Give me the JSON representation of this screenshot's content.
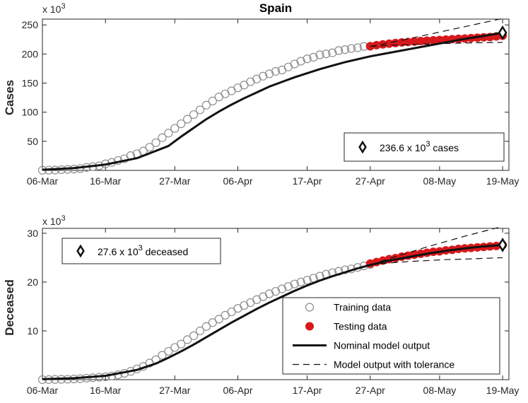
{
  "chart_data": [
    {
      "type": "line",
      "title": "Spain",
      "ylabel": "Cases",
      "y_exponent": "x 10^3",
      "ylim": [
        0,
        260
      ],
      "yticks": [
        50,
        100,
        150,
        200,
        250
      ],
      "xlim": [
        0,
        74
      ],
      "xtick_positions": [
        0,
        10,
        21,
        31,
        42,
        52,
        63,
        73
      ],
      "xtick_labels": [
        "06-Mar",
        "16-Mar",
        "27-Mar",
        "06-Apr",
        "17-Apr",
        "27-Apr",
        "08-May",
        "19-May"
      ],
      "training_data": {
        "name": "Training data",
        "x": [
          0,
          1,
          2,
          3,
          4,
          5,
          6,
          7,
          8,
          9,
          10,
          11,
          12,
          13,
          14,
          15,
          16,
          17,
          18,
          19,
          20,
          21,
          22,
          23,
          24,
          25,
          26,
          27,
          28,
          29,
          30,
          31,
          32,
          33,
          34,
          35,
          36,
          37,
          38,
          39,
          40,
          41,
          42,
          43,
          44,
          45,
          46,
          47,
          48,
          49,
          50,
          51,
          52
        ],
        "y": [
          0.3,
          0.4,
          0.6,
          1.2,
          1.7,
          2.3,
          3.1,
          5.2,
          6.4,
          7.8,
          11.2,
          13.7,
          17.1,
          20.0,
          25.4,
          28.6,
          33.1,
          39.7,
          47.6,
          56.2,
          64.1,
          72.2,
          80.1,
          87.9,
          95.9,
          104.1,
          112.1,
          119.2,
          126.2,
          131.6,
          136.7,
          141.9,
          146.7,
          152.4,
          157.0,
          161.9,
          166.0,
          170.1,
          172.5,
          177.6,
          182.8,
          187.6,
          191.7,
          194.4,
          198.6,
          200.2,
          202.0,
          205.9,
          207.6,
          209.5,
          210.8,
          212.9,
          213.4
        ]
      },
      "testing_data": {
        "name": "Testing data",
        "x": [
          52,
          53,
          54,
          55,
          56,
          57,
          58,
          59,
          60,
          61,
          62,
          63,
          64,
          65,
          66,
          67,
          68,
          69,
          70,
          71,
          72,
          73
        ],
        "y": [
          213.4,
          215.2,
          216.6,
          217.8,
          218.9,
          219.9,
          220.7,
          221.4,
          222.3,
          222.9,
          223.6,
          224.2,
          224.8,
          225.6,
          226.1,
          226.6,
          227.4,
          228.0,
          228.7,
          229.2,
          230.2,
          231.4
        ]
      },
      "nominal_model": {
        "name": "Nominal model output",
        "x": [
          0,
          5,
          10,
          15,
          20,
          22,
          24,
          26,
          28,
          30,
          32,
          34,
          36,
          38,
          40,
          42,
          44,
          46,
          48,
          50,
          52,
          55,
          58,
          61,
          64,
          67,
          70,
          73
        ],
        "y": [
          1,
          4,
          10,
          21,
          42,
          58,
          73,
          88,
          101,
          113,
          124,
          134,
          144,
          152,
          160,
          167,
          174,
          180,
          186,
          191,
          196,
          202,
          208,
          214,
          220,
          226,
          231,
          236.6
        ]
      },
      "tolerance_upper": {
        "name": "Model output with tolerance",
        "x": [
          52,
          55,
          58,
          61,
          64,
          67,
          70,
          73
        ],
        "y": [
          213,
          219,
          226,
          233,
          240,
          247,
          254,
          261
        ]
      },
      "tolerance_lower": {
        "x": [
          52,
          55,
          58,
          61,
          64,
          67,
          70,
          73
        ],
        "y": [
          213,
          215,
          216,
          217,
          218,
          219,
          219.5,
          220
        ]
      },
      "marker_point": {
        "x": 73,
        "y": 236.6
      },
      "annotation_text": "236.6 x 10^3 cases",
      "annotation_prefix": "236.6 x 10",
      "annotation_sup": "3",
      "annotation_suffix": " cases",
      "annotation_position": "bottom-right"
    },
    {
      "type": "line",
      "title": "",
      "ylabel": "Deceased",
      "y_exponent": "x 10^3",
      "ylim": [
        0,
        31
      ],
      "yticks": [
        10,
        20,
        30
      ],
      "xlim": [
        0,
        74
      ],
      "xtick_positions": [
        0,
        10,
        21,
        31,
        42,
        52,
        63,
        73
      ],
      "xtick_labels": [
        "06-Mar",
        "16-Mar",
        "27-Mar",
        "06-Apr",
        "17-Apr",
        "27-Apr",
        "08-May",
        "19-May"
      ],
      "training_data": {
        "name": "Training data",
        "x": [
          0,
          1,
          2,
          3,
          4,
          5,
          6,
          7,
          8,
          9,
          10,
          11,
          12,
          13,
          14,
          15,
          16,
          17,
          18,
          19,
          20,
          21,
          22,
          23,
          24,
          25,
          26,
          27,
          28,
          29,
          30,
          31,
          32,
          33,
          34,
          35,
          36,
          37,
          38,
          39,
          40,
          41,
          42,
          43,
          44,
          45,
          46,
          47,
          48,
          49,
          50,
          51,
          52
        ],
        "y": [
          0.01,
          0.02,
          0.05,
          0.07,
          0.1,
          0.14,
          0.2,
          0.3,
          0.4,
          0.5,
          0.6,
          0.75,
          1.0,
          1.3,
          1.7,
          2.2,
          2.7,
          3.4,
          4.1,
          5.0,
          5.8,
          6.6,
          7.3,
          8.2,
          9.0,
          10.0,
          10.9,
          11.7,
          12.4,
          13.2,
          13.9,
          14.6,
          15.2,
          15.8,
          16.4,
          17.0,
          17.6,
          18.1,
          18.6,
          19.1,
          19.6,
          20.0,
          20.4,
          20.8,
          21.2,
          21.6,
          21.9,
          22.2,
          22.5,
          22.7,
          23.0,
          23.3,
          23.6
        ]
      },
      "testing_data": {
        "name": "Testing data",
        "x": [
          52,
          53,
          54,
          55,
          56,
          57,
          58,
          59,
          60,
          61,
          62,
          63,
          64,
          65,
          66,
          67,
          68,
          69,
          70,
          71,
          72,
          73
        ],
        "y": [
          23.8,
          24.1,
          24.4,
          24.7,
          24.9,
          25.2,
          25.4,
          25.6,
          25.8,
          26.0,
          26.2,
          26.3,
          26.5,
          26.6,
          26.8,
          26.9,
          27.0,
          27.1,
          27.2,
          27.3,
          27.4,
          27.6
        ]
      },
      "nominal_model": {
        "name": "Nominal model output",
        "x": [
          0,
          5,
          10,
          15,
          18,
          20,
          22,
          24,
          26,
          28,
          30,
          32,
          34,
          36,
          38,
          40,
          42,
          44,
          46,
          48,
          50,
          52,
          55,
          58,
          61,
          64,
          67,
          70,
          73
        ],
        "y": [
          0.1,
          0.3,
          0.8,
          2.0,
          3.3,
          4.5,
          5.8,
          7.2,
          8.7,
          10.2,
          11.7,
          13.1,
          14.5,
          15.8,
          17.0,
          18.2,
          19.3,
          20.3,
          21.2,
          22.0,
          22.8,
          23.5,
          24.4,
          25.1,
          25.8,
          26.4,
          26.9,
          27.3,
          27.6
        ]
      },
      "tolerance_upper": {
        "name": "Model output with tolerance",
        "x": [
          52,
          55,
          58,
          61,
          64,
          67,
          70,
          73
        ],
        "y": [
          23.5,
          24.8,
          26.0,
          27.2,
          28.3,
          29.4,
          30.4,
          31.4
        ]
      },
      "tolerance_lower": {
        "x": [
          52,
          55,
          58,
          61,
          64,
          67,
          70,
          73
        ],
        "y": [
          23.5,
          23.9,
          24.2,
          24.4,
          24.6,
          24.7,
          24.85,
          25.0
        ]
      },
      "marker_point": {
        "x": 73,
        "y": 27.6
      },
      "annotation_text": "27.6 x 10^3 deceased",
      "annotation_prefix": "27.6 x 10",
      "annotation_sup": "3",
      "annotation_suffix": " deceased",
      "annotation_position": "top-left",
      "legend": {
        "position": "bottom-right",
        "entries": [
          "Training data",
          "Testing data",
          "Nominal model output",
          "Model output with tolerance"
        ]
      }
    }
  ],
  "colors": {
    "training": "#8c8c8c",
    "testing": "#d7191c",
    "nominal": "#111111",
    "tolerance": "#111111",
    "axis": "#262626"
  }
}
